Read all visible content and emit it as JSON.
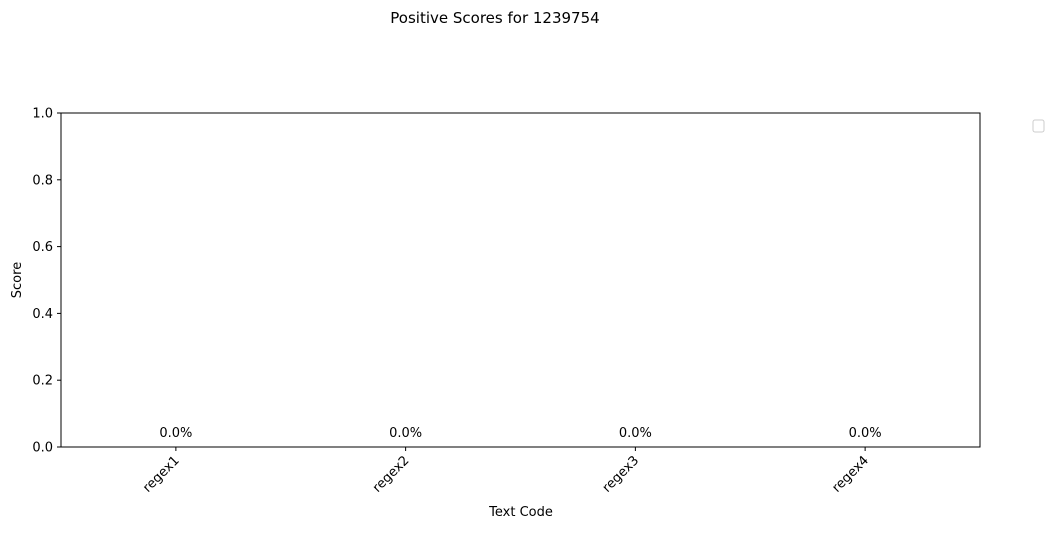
{
  "chart_data": {
    "type": "bar",
    "title": "Positive Scores for 1239754",
    "xlabel": "Text Code",
    "ylabel": "Score",
    "categories": [
      "regex1",
      "regex2",
      "regex3",
      "regex4"
    ],
    "values": [
      0.0,
      0.0,
      0.0,
      0.0
    ],
    "data_labels": [
      "0.0%",
      "0.0%",
      "0.0%",
      "0.0%"
    ],
    "ylim": [
      0,
      1.0
    ],
    "y_ticks": [
      0.0,
      0.2,
      0.4,
      0.6,
      0.8,
      1.0
    ],
    "y_tick_labels": [
      "0.0",
      "0.2",
      "0.4",
      "0.6",
      "0.8",
      "1.0"
    ],
    "x_tick_rotation_deg": 45,
    "grid": false,
    "legend": {
      "placement": "outside-top-right",
      "entries": []
    },
    "colors": {
      "axis": "#000000",
      "text": "#000000",
      "legend_border": "#cccccc",
      "bar": "#1f77b4"
    }
  }
}
